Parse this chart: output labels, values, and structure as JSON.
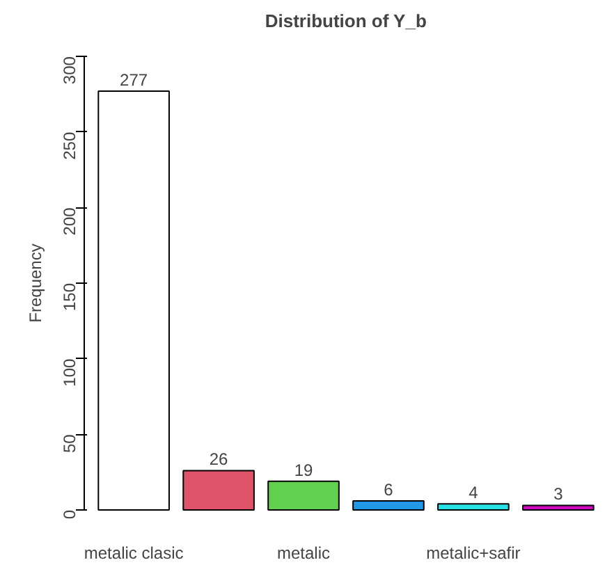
{
  "chart_data": {
    "type": "bar",
    "title": "Distribution of Y_b",
    "ylabel": "Frequency",
    "categories": [
      "metalic clasic",
      null,
      "metalic",
      null,
      "metalic+safir",
      null
    ],
    "values": [
      277,
      26,
      19,
      6,
      4,
      3
    ],
    "colors": [
      "#ffffff",
      "#df536b",
      "#61d04f",
      "#2297e6",
      "#28e2e5",
      "#cd0bbc"
    ],
    "ylim": [
      0,
      300
    ],
    "yticks": [
      0,
      50,
      100,
      150,
      200,
      250,
      300
    ],
    "data_labels": true,
    "grid": false
  }
}
